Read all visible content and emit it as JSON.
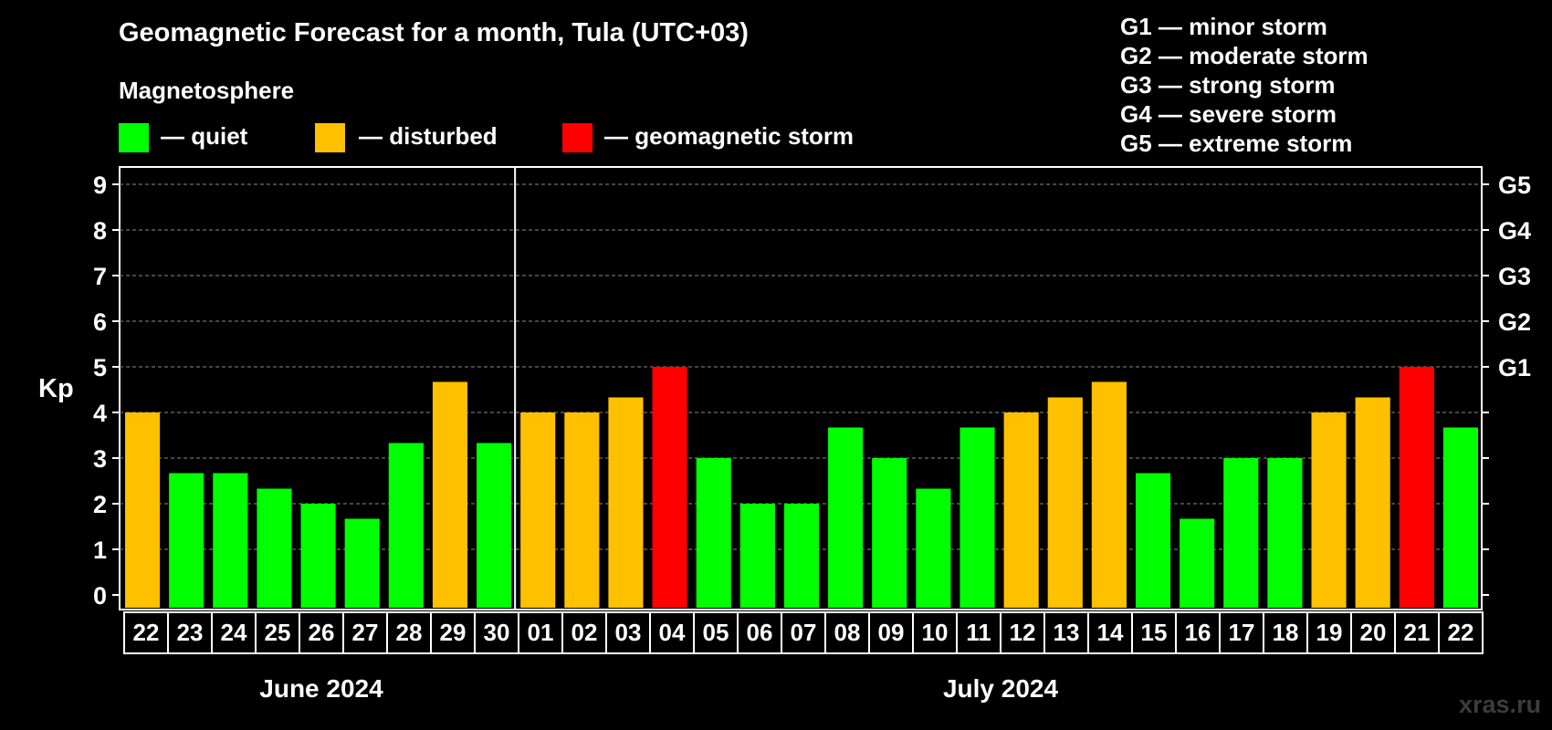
{
  "title": "Geomagnetic Forecast for a month, Tula (UTC+03)",
  "subtitle": "Magnetosphere",
  "legend": [
    {
      "label": "— quiet",
      "color": "#00ff00"
    },
    {
      "label": "— disturbed",
      "color": "#ffc000"
    },
    {
      "label": "— geomagnetic storm",
      "color": "#ff0000"
    }
  ],
  "storm_scale": [
    "G1 — minor storm",
    "G2 — moderate storm",
    "G3 — strong storm",
    "G4 — severe storm",
    "G5 — extreme storm"
  ],
  "watermark": "xras.ru",
  "chart_data": {
    "type": "bar",
    "ylabel": "Kp",
    "ylim": [
      0,
      9
    ],
    "y_ticks": [
      "0",
      "1",
      "2",
      "3",
      "4",
      "5",
      "6",
      "7",
      "8",
      "9"
    ],
    "right_ticks": [
      {
        "value": 5,
        "label": "G1"
      },
      {
        "value": 6,
        "label": "G2"
      },
      {
        "value": 7,
        "label": "G3"
      },
      {
        "value": 8,
        "label": "G4"
      },
      {
        "value": 9,
        "label": "G5"
      }
    ],
    "grid": "dashed horizontal",
    "categories": [
      "22",
      "23",
      "24",
      "25",
      "26",
      "27",
      "28",
      "29",
      "30",
      "01",
      "02",
      "03",
      "04",
      "05",
      "06",
      "07",
      "08",
      "09",
      "10",
      "11",
      "12",
      "13",
      "14",
      "15",
      "16",
      "17",
      "18",
      "19",
      "20",
      "21",
      "22"
    ],
    "values": [
      4.0,
      2.67,
      2.67,
      2.33,
      2.0,
      1.67,
      3.33,
      4.67,
      3.33,
      4.0,
      4.0,
      4.33,
      5.0,
      3.0,
      2.0,
      2.0,
      3.67,
      3.0,
      2.33,
      3.67,
      4.0,
      4.33,
      4.67,
      2.67,
      1.67,
      3.0,
      3.0,
      4.0,
      4.33,
      5.0,
      3.67
    ],
    "levels": [
      "disturbed",
      "quiet",
      "quiet",
      "quiet",
      "quiet",
      "quiet",
      "quiet",
      "disturbed",
      "quiet",
      "disturbed",
      "disturbed",
      "disturbed",
      "storm",
      "quiet",
      "quiet",
      "quiet",
      "quiet",
      "quiet",
      "quiet",
      "quiet",
      "disturbed",
      "disturbed",
      "disturbed",
      "quiet",
      "quiet",
      "quiet",
      "quiet",
      "disturbed",
      "disturbed",
      "storm",
      "quiet"
    ],
    "level_colors": {
      "quiet": "#00ff00",
      "disturbed": "#ffc000",
      "storm": "#ff0000"
    },
    "months": [
      {
        "label": "June 2024",
        "start": 0,
        "end": 8
      },
      {
        "label": "July 2024",
        "start": 9,
        "end": 30
      }
    ]
  }
}
